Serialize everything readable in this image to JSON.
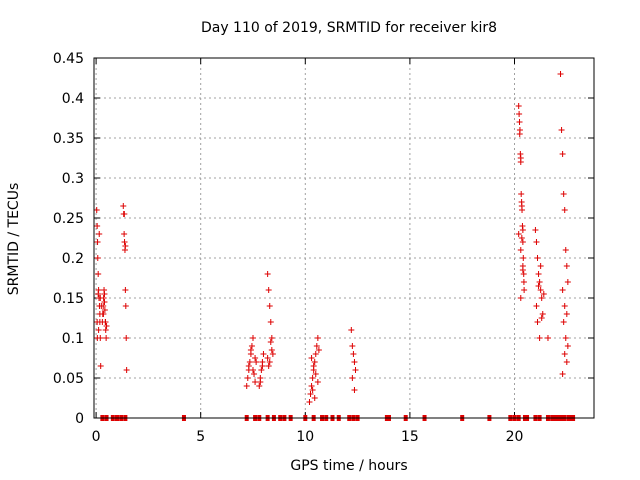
{
  "chart_data": {
    "type": "scatter",
    "title": "Day 110 of 2019, SRMTID for receiver kir8",
    "xlabel": "GPS time / hours",
    "ylabel": "SRMTID / TECUs",
    "xlim": [
      -0.1,
      23.8
    ],
    "ylim": [
      0,
      0.45
    ],
    "xticks": [
      0,
      5,
      10,
      15,
      20
    ],
    "xtick_labels": [
      "0",
      "5",
      "10",
      "15",
      "20"
    ],
    "yticks": [
      0,
      0.05,
      0.1,
      0.15,
      0.2,
      0.25,
      0.3,
      0.35,
      0.4,
      0.45
    ],
    "ytick_labels": [
      "0",
      "0.05",
      "0.1",
      "0.15",
      "0.2",
      "0.25",
      "0.3",
      "0.35",
      "0.4",
      "0.45"
    ],
    "grid": true,
    "marker": "+",
    "color": "#dd0000",
    "series": [
      {
        "name": "SRMTID",
        "x": [
          0.03,
          0.05,
          0.07,
          0.08,
          0.1,
          0.12,
          0.14,
          0.16,
          0.18,
          0.2,
          0.22,
          0.05,
          0.1,
          0.15,
          0.2,
          0.25,
          0.06,
          0.12,
          0.18,
          0.3,
          0.32,
          0.34,
          0.36,
          0.38,
          0.4,
          0.42,
          0.44,
          0.46,
          0.48,
          0.5,
          0.35,
          0.4,
          0.45,
          1.3,
          1.32,
          1.34,
          1.36,
          1.38,
          1.4,
          1.42,
          1.44,
          1.46,
          1.35,
          1.4,
          7.2,
          7.25,
          7.3,
          7.35,
          7.4,
          7.45,
          7.5,
          7.55,
          7.6,
          7.65,
          7.3,
          7.4,
          7.5,
          7.6,
          7.8,
          7.85,
          7.9,
          7.95,
          8.0,
          7.85,
          7.95,
          8.2,
          8.25,
          8.3,
          8.35,
          8.4,
          8.45,
          8.2,
          8.3,
          8.4,
          8.25,
          8.35,
          10.2,
          10.25,
          10.3,
          10.35,
          10.4,
          10.45,
          10.5,
          10.55,
          10.6,
          10.65,
          10.3,
          10.4,
          10.5,
          10.6,
          10.35,
          10.45,
          12.2,
          12.25,
          12.3,
          12.35,
          12.4,
          12.25,
          12.35,
          20.2,
          20.22,
          20.24,
          20.26,
          20.28,
          20.3,
          20.32,
          20.34,
          20.36,
          20.38,
          20.4,
          20.42,
          20.44,
          20.46,
          20.3,
          20.35,
          20.4,
          20.25,
          20.3,
          20.35,
          20.4,
          20.2,
          20.3,
          20.4,
          20.45,
          21.0,
          21.05,
          21.1,
          21.15,
          21.2,
          21.25,
          21.3,
          21.35,
          21.1,
          21.2,
          21.3,
          21.15,
          21.25,
          21.05,
          21.4,
          21.6,
          22.2,
          22.25,
          22.3,
          22.35,
          22.4,
          22.45,
          22.5,
          22.55,
          22.3,
          22.4,
          22.5,
          22.35,
          22.45,
          22.55,
          22.4,
          22.5,
          22.3
        ],
        "y": [
          0.26,
          0.24,
          0.22,
          0.2,
          0.18,
          0.16,
          0.15,
          0.14,
          0.13,
          0.1,
          0.065,
          0.12,
          0.155,
          0.23,
          0.15,
          0.14,
          0.1,
          0.11,
          0.12,
          0.12,
          0.13,
          0.14,
          0.15,
          0.16,
          0.155,
          0.135,
          0.12,
          0.11,
          0.1,
          0.115,
          0.13,
          0.145,
          0.12,
          0.265,
          0.255,
          0.23,
          0.22,
          0.21,
          0.16,
          0.14,
          0.1,
          0.06,
          0.255,
          0.215,
          0.04,
          0.05,
          0.06,
          0.07,
          0.08,
          0.09,
          0.1,
          0.055,
          0.045,
          0.07,
          0.065,
          0.085,
          0.06,
          0.075,
          0.04,
          0.05,
          0.06,
          0.07,
          0.08,
          0.045,
          0.065,
          0.18,
          0.16,
          0.14,
          0.12,
          0.1,
          0.08,
          0.075,
          0.07,
          0.085,
          0.065,
          0.095,
          0.02,
          0.03,
          0.04,
          0.05,
          0.06,
          0.07,
          0.08,
          0.09,
          0.1,
          0.085,
          0.075,
          0.065,
          0.055,
          0.045,
          0.035,
          0.025,
          0.11,
          0.09,
          0.08,
          0.07,
          0.06,
          0.05,
          0.035,
          0.39,
          0.38,
          0.37,
          0.36,
          0.33,
          0.32,
          0.28,
          0.27,
          0.26,
          0.24,
          0.22,
          0.2,
          0.18,
          0.16,
          0.15,
          0.225,
          0.19,
          0.355,
          0.325,
          0.265,
          0.235,
          0.23,
          0.21,
          0.185,
          0.17,
          0.235,
          0.22,
          0.2,
          0.18,
          0.17,
          0.16,
          0.15,
          0.13,
          0.12,
          0.1,
          0.125,
          0.165,
          0.19,
          0.14,
          0.155,
          0.1,
          0.43,
          0.36,
          0.33,
          0.28,
          0.26,
          0.21,
          0.19,
          0.17,
          0.16,
          0.14,
          0.13,
          0.12,
          0.1,
          0.09,
          0.08,
          0.07,
          0.055
        ],
        "zero_x": [
          0.3,
          0.5,
          0.8,
          1.0,
          1.2,
          1.4,
          4.2,
          7.2,
          7.6,
          7.8,
          8.2,
          8.5,
          8.8,
          9.0,
          9.3,
          10.0,
          10.4,
          10.8,
          11.0,
          11.3,
          11.6,
          12.1,
          12.3,
          12.5,
          13.9,
          14.0,
          14.8,
          15.7,
          17.5,
          18.8,
          19.8,
          20.0,
          20.2,
          20.5,
          20.6,
          21.0,
          21.2,
          21.6,
          21.8,
          21.9,
          22.0,
          22.1,
          22.2,
          22.3,
          22.4,
          22.6,
          22.7,
          22.8
        ]
      }
    ]
  }
}
